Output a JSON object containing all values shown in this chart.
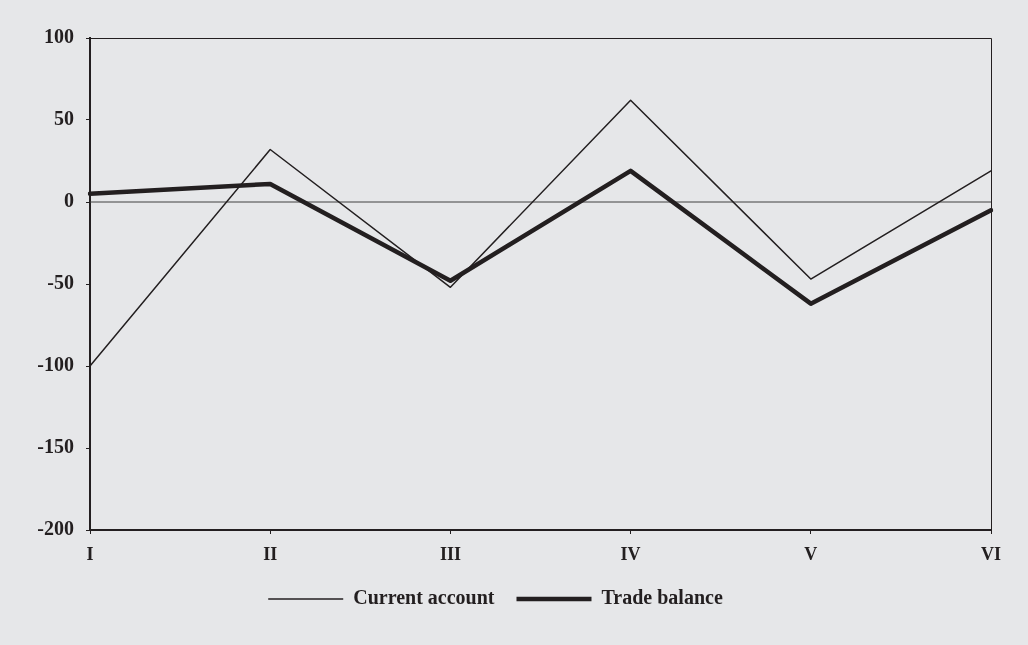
{
  "chart_data": {
    "type": "line",
    "categories": [
      "I",
      "II",
      "III",
      "IV",
      "V",
      "VI"
    ],
    "series": [
      {
        "name": "Current account",
        "color": "#231f20",
        "values": [
          -100,
          32,
          -52,
          62,
          -47,
          19
        ]
      },
      {
        "name": "Trade balance",
        "color": "#231f20",
        "values": [
          5,
          11,
          -48,
          19,
          -62,
          -5
        ]
      }
    ],
    "ylim": [
      -200,
      100
    ],
    "yticks": [
      -200,
      -150,
      -100,
      -50,
      0,
      50,
      100
    ],
    "ref_lines": [
      {
        "axis": "y",
        "value": 0,
        "color": "#404040"
      }
    ],
    "grid": false,
    "legend": "bottom",
    "marker": "none"
  }
}
